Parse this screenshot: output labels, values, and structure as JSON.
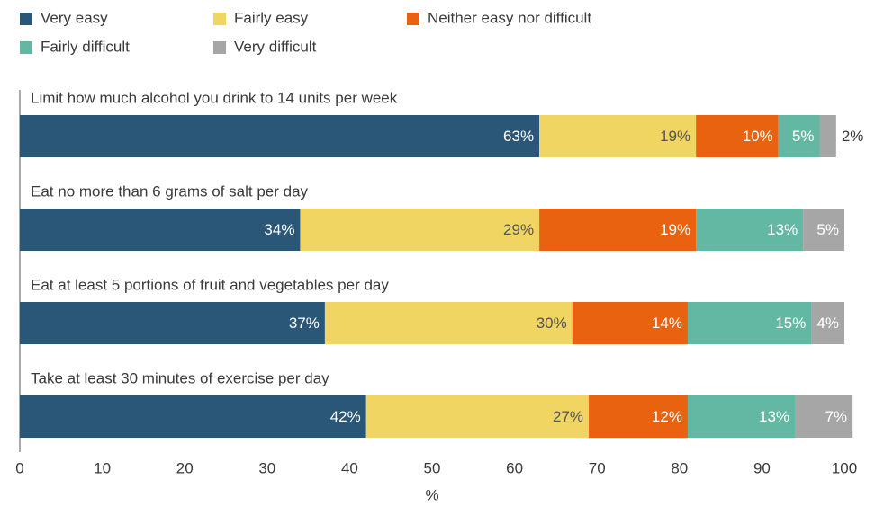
{
  "chart_data": {
    "type": "stacked_bar_horizontal",
    "categories": [
      "Limit how much alcohol you drink to 14 units per week",
      "Eat no more than 6 grams of salt per day",
      "Eat at least 5 portions of fruit and vegetables per day",
      "Take at least 30 minutes of exercise per day"
    ],
    "series": [
      {
        "name": "Very easy",
        "color": "#2a5678",
        "values": [
          63,
          34,
          37,
          42
        ],
        "value_labels": [
          "63%",
          "34%",
          "37%",
          "42%"
        ]
      },
      {
        "name": "Fairly easy",
        "color": "#f0d562",
        "values": [
          19,
          29,
          30,
          27
        ],
        "value_labels": [
          "19%",
          "29%",
          "30%",
          "27%"
        ]
      },
      {
        "name": "Neither easy nor difficult",
        "color": "#e8620f",
        "values": [
          10,
          19,
          14,
          12
        ],
        "value_labels": [
          "10%",
          "19%",
          "14%",
          "12%"
        ]
      },
      {
        "name": "Fairly difficult",
        "color": "#63b8a3",
        "values": [
          5,
          13,
          15,
          13
        ],
        "value_labels": [
          "5%",
          "13%",
          "15%",
          "13%"
        ]
      },
      {
        "name": "Very difficult",
        "color": "#a6a6a6",
        "values": [
          2,
          5,
          4,
          7
        ],
        "value_labels": [
          "2%",
          "5%",
          "4%",
          "7%"
        ]
      }
    ],
    "xlabel": "%",
    "xlim": [
      0,
      100
    ],
    "xticks": [
      0,
      10,
      20,
      30,
      40,
      50,
      60,
      70,
      80,
      90,
      100
    ],
    "legend": "top"
  }
}
